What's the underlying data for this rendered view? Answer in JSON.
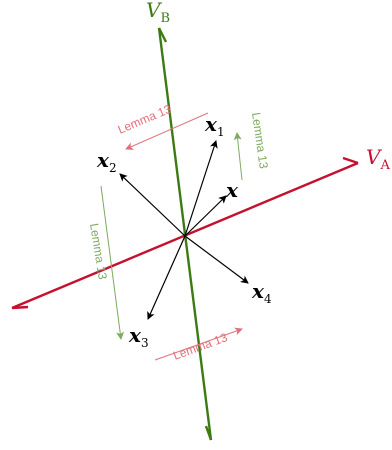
{
  "axes": {
    "a": {
      "label": "V",
      "subscript": "A",
      "color": "#c5102f"
    },
    "b": {
      "label": "V",
      "subscript": "B",
      "color": "#3e7a12"
    }
  },
  "vectors": {
    "x": {
      "label": "x",
      "subscript": ""
    },
    "x1": {
      "label": "x",
      "subscript": "1"
    },
    "x2": {
      "label": "x",
      "subscript": "2"
    },
    "x3": {
      "label": "x",
      "subscript": "3"
    },
    "x4": {
      "label": "x",
      "subscript": "4"
    }
  },
  "lemmas": {
    "top": {
      "text": "Lemma 13",
      "color": "#e0707c"
    },
    "right": {
      "text": "Lemma 13",
      "color": "#7daa5e"
    },
    "left": {
      "text": "Lemma 13",
      "color": "#7daa5e"
    },
    "bottom": {
      "text": "Lemma 13",
      "color": "#e0707c"
    }
  },
  "colors": {
    "vector": "#000000",
    "axis_a": "#c5102f",
    "axis_b": "#3e7a12",
    "lemma_red": "#e0707c",
    "lemma_green": "#7daa5e"
  }
}
